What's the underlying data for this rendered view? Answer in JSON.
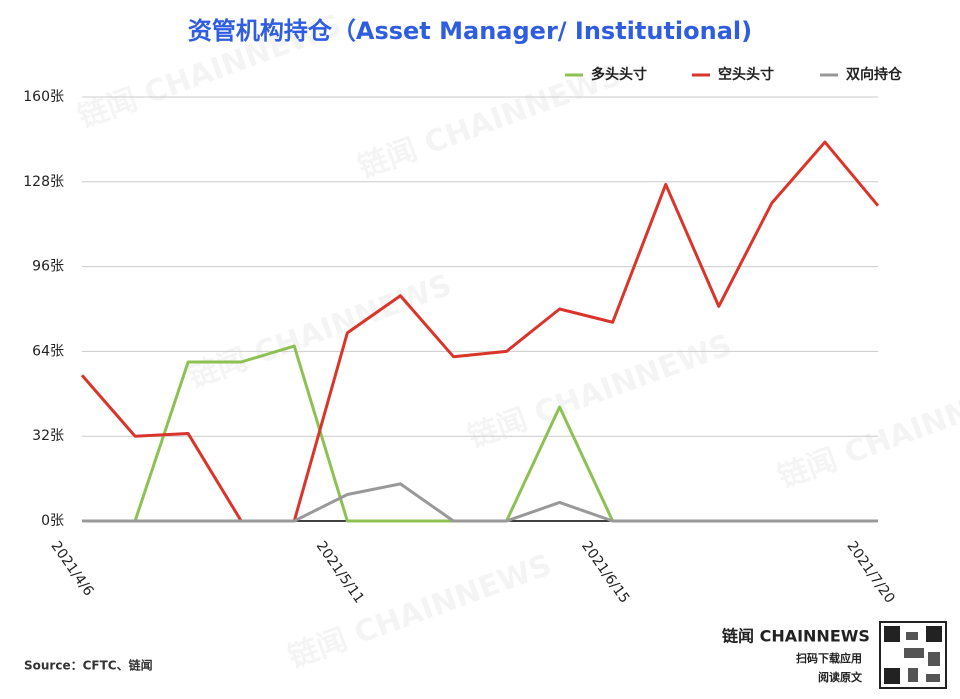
{
  "chart_data": {
    "type": "line",
    "title": "资管机构持仓（Asset Manager/ Institutional)",
    "categories": [
      "2021/4/6",
      null,
      null,
      null,
      null,
      "2021/5/11",
      null,
      null,
      null,
      null,
      "2021/6/15",
      null,
      null,
      null,
      null,
      "2021/7/20"
    ],
    "series": [
      {
        "name": "多头头寸",
        "color": "#8dc153",
        "values": [
          0,
          0,
          60,
          60,
          66,
          0,
          0,
          0,
          0,
          43,
          0,
          0,
          0,
          0,
          0,
          0
        ]
      },
      {
        "name": "空头头寸",
        "color": "#d9352a",
        "values": [
          55,
          32,
          33,
          0,
          0,
          71,
          85,
          62,
          64,
          80,
          75,
          127,
          81,
          120,
          143,
          119
        ]
      },
      {
        "name": "双向持仓",
        "color": "#999999",
        "values": [
          0,
          0,
          0,
          0,
          0,
          10,
          14,
          0,
          0,
          7,
          0,
          0,
          0,
          0,
          0,
          0
        ]
      }
    ],
    "ylim": [
      0,
      160
    ],
    "yticks": [
      {
        "value": 0,
        "label": "0张"
      },
      {
        "value": 32,
        "label": "32张"
      },
      {
        "value": 64,
        "label": "64张"
      },
      {
        "value": 96,
        "label": "96张"
      },
      {
        "value": 128,
        "label": "128张"
      },
      {
        "value": 160,
        "label": "160张"
      }
    ],
    "grid": true,
    "legend": "top-right",
    "source": "Source：CFTC、链闻",
    "brand": "链闻 CHAINNEWS",
    "brand_sub1": "扫码下载应用",
    "brand_sub2": "阅读原文"
  }
}
